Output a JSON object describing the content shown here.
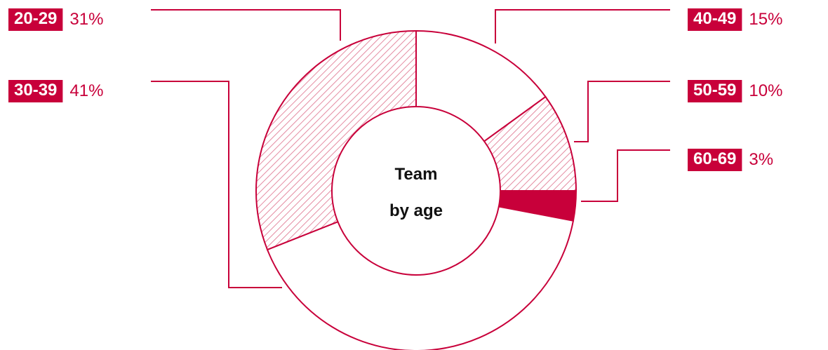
{
  "colors": {
    "accent": "#C8003A",
    "accent_light": "#E48CA2",
    "background": "#FFFFFF",
    "text_dark": "#111111"
  },
  "chart_data": {
    "type": "pie",
    "variant": "donut",
    "center_label": [
      "Team",
      "by age"
    ],
    "categories": [
      "40-49",
      "50-59",
      "60-69",
      "30-39",
      "20-29"
    ],
    "values": [
      15,
      10,
      3,
      41,
      31
    ],
    "fills": [
      "none",
      "hatched",
      "solid",
      "none",
      "hatched"
    ],
    "value_labels": [
      "15%",
      "10%",
      "3%",
      "41%",
      "31%"
    ]
  }
}
